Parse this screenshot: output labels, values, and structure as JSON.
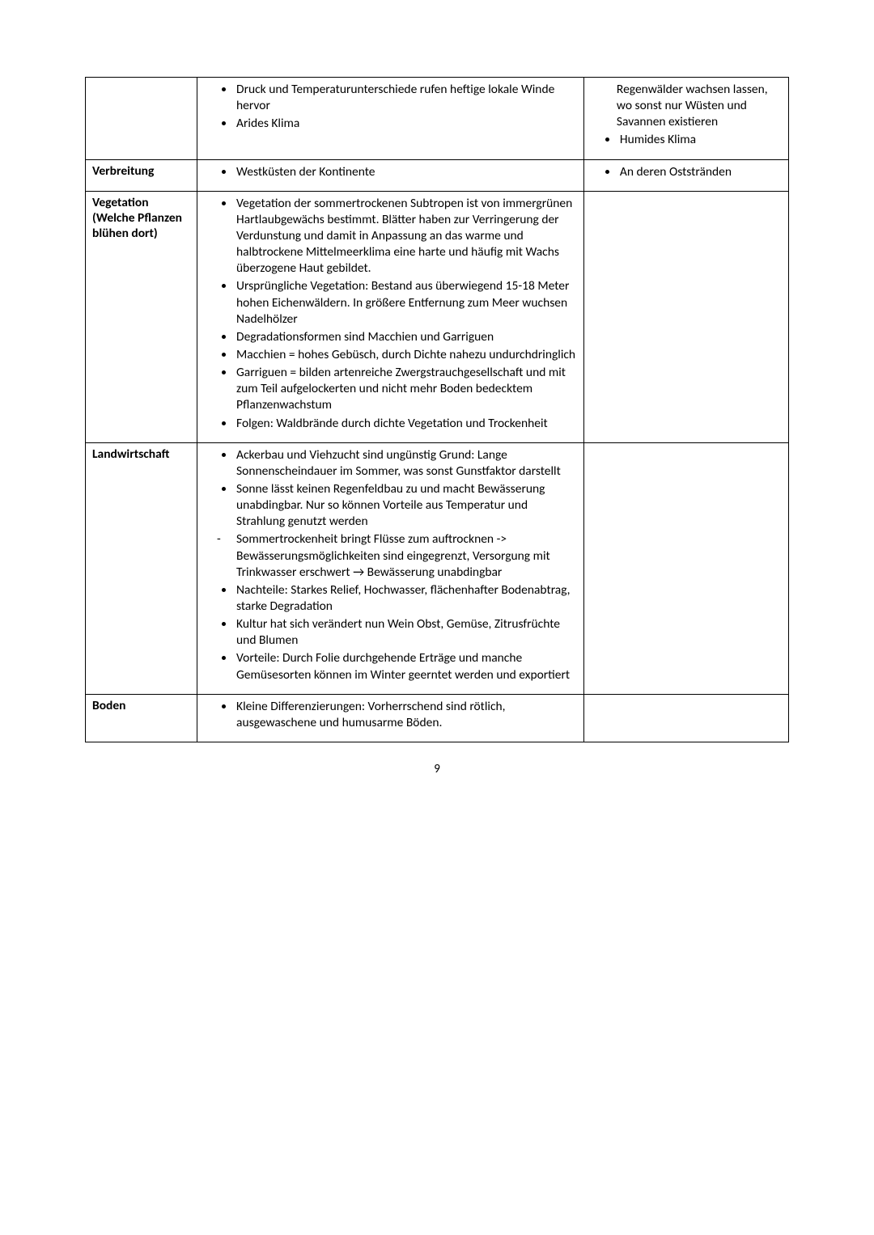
{
  "row1": {
    "label": "",
    "mid": {
      "items": [
        "Druck und Temperaturunterschiede rufen heftige lokale Winde hervor",
        "Arides Klima"
      ]
    },
    "right": {
      "items": [
        "Regenwälder wachsen lassen, wo sonst nur Wüsten und Savannen existieren",
        "Humides Klima"
      ]
    }
  },
  "row2": {
    "label": "Verbreitung",
    "mid": {
      "items": [
        "Westküsten der Kontinente"
      ]
    },
    "right": {
      "items": [
        "An deren Oststränden"
      ]
    }
  },
  "row3": {
    "label": "Vegetation (Welche Pflanzen blühen dort)",
    "mid": {
      "items": [
        "Vegetation der sommertrockenen Subtropen ist von immergrünen Hartlaubgewächs bestimmt. Blätter haben zur Verringerung der Verdunstung und damit in Anpassung an das warme und halbtrockene Mittelmeerklima eine harte und häufig mit Wachs überzogene Haut gebildet.",
        "Ursprüngliche Vegetation: Bestand aus überwiegend 15-18 Meter hohen Eichenwäldern. In größere Entfernung zum Meer wuchsen Nadelhölzer",
        "Degradationsformen sind Macchien und Garriguen",
        "Macchien = hohes Gebüsch, durch Dichte nahezu undurchdringlich",
        "Garriguen = bilden artenreiche Zwergstrauchgesellschaft und mit zum Teil aufgelockerten und nicht mehr Boden bedecktem Pflanzenwachstum",
        "Folgen: Waldbrände durch dichte Vegetation und Trockenheit"
      ]
    },
    "right": {
      "items": []
    }
  },
  "row4": {
    "label": "Landwirtschaft",
    "mid": {
      "items": [
        {
          "type": "bullet",
          "text": "Ackerbau und Viehzucht sind ungünstig Grund: Lange Sonnenscheindauer im Sommer, was sonst Gunstfaktor darstellt"
        },
        {
          "type": "bullet",
          "text": "Sonne lässt keinen Regenfeldbau zu und macht Bewässerung unabdingbar. Nur so können Vorteile aus Temperatur und Strahlung genutzt werden"
        },
        {
          "type": "dash",
          "text": "Sommertrockenheit bringt Flüsse zum auftrocknen -> Bewässerungsmöglichkeiten sind eingegrenzt, Versorgung mit Trinkwasser erschwert → Bewässerung unabdingbar"
        },
        {
          "type": "bullet",
          "text": "Nachteile: Starkes Relief, Hochwasser, flächenhafter Bodenabtrag, starke Degradation"
        },
        {
          "type": "bullet",
          "text": "Kultur hat sich verändert nun Wein Obst, Gemüse, Zitrusfrüchte und Blumen"
        },
        {
          "type": "bullet",
          "text": "Vorteile: Durch Folie durchgehende Erträge und manche Gemüsesorten können im Winter geerntet werden und exportiert"
        }
      ]
    },
    "right": {
      "items": []
    }
  },
  "row5": {
    "label": "Boden",
    "mid": {
      "items": [
        "Kleine Differenzierungen: Vorherrschend sind rötlich, ausgewaschene und humusarme Böden."
      ]
    },
    "right": {
      "items": []
    }
  },
  "page_number": "9"
}
